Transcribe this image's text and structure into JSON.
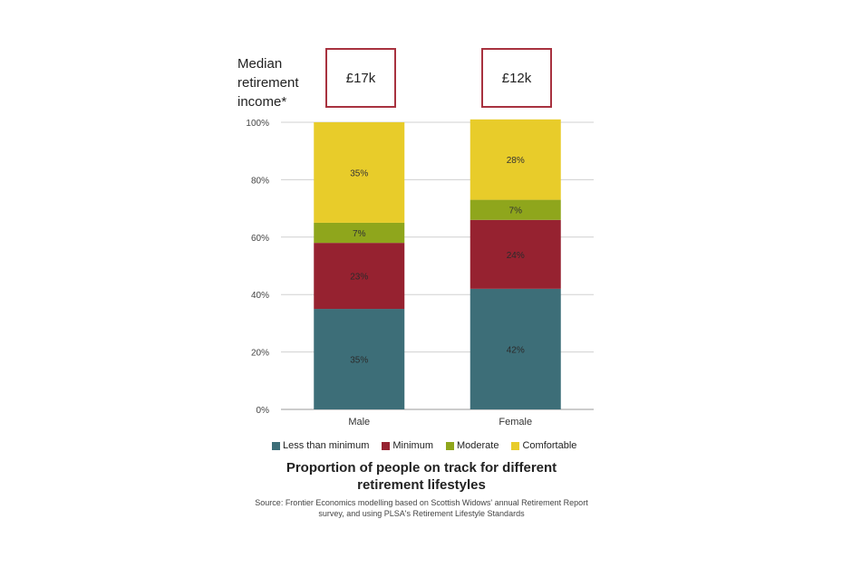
{
  "header": {
    "income_label": "Median retirement income*",
    "male_income": "£17k",
    "female_income": "£12k"
  },
  "chart_data": {
    "type": "bar",
    "stacked": true,
    "categories": [
      "Male",
      "Female"
    ],
    "series": [
      {
        "name": "Less than minimum",
        "values": [
          35,
          42
        ],
        "labels": [
          "35%",
          "42%"
        ],
        "color": "#3d6e78"
      },
      {
        "name": "Minimum",
        "values": [
          23,
          24
        ],
        "labels": [
          "23%",
          "24%"
        ],
        "color": "#962230"
      },
      {
        "name": "Moderate",
        "values": [
          7,
          7
        ],
        "labels": [
          "7%",
          "7%"
        ],
        "color": "#8fa61c"
      },
      {
        "name": "Comfortable",
        "values": [
          35,
          28
        ],
        "labels": [
          "35%",
          "28%"
        ],
        "color": "#e8cc2a"
      }
    ],
    "yticks": [
      "0%",
      "20%",
      "40%",
      "60%",
      "80%",
      "100%"
    ],
    "ylim": [
      0,
      100
    ],
    "grid": true,
    "legend_position": "bottom",
    "title": "Proportion of people on track for different retirement lifestyles",
    "source": "Source: Frontier Economics modelling based on Scottish Widows' annual Retirement Report survey, and using PLSA's Retirement Lifestyle Standards"
  }
}
